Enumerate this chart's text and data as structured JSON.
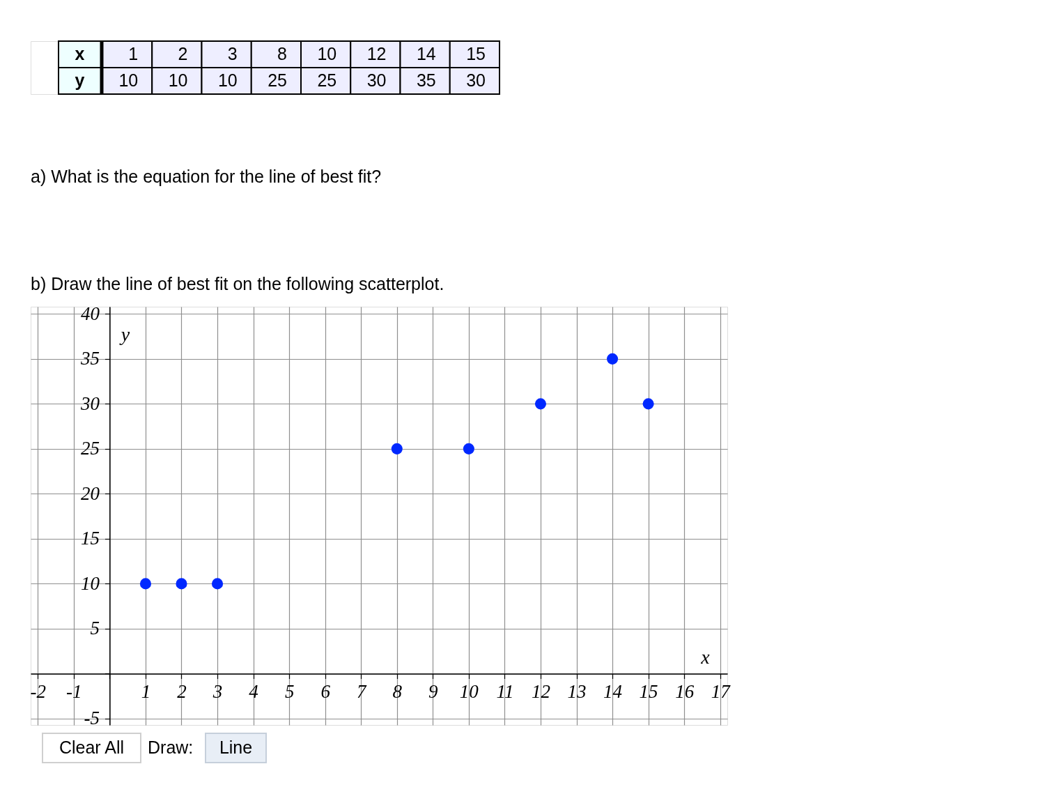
{
  "chart_data": [
    {
      "type": "other",
      "xlabel": "x",
      "ylabel": "y",
      "categories": [
        "1",
        "2",
        "3",
        "8",
        "10",
        "12",
        "14",
        "15"
      ],
      "values": [
        10,
        10,
        10,
        25,
        25,
        30,
        35,
        30
      ],
      "data_labels": true
    },
    {
      "type": "scatter",
      "title": "a) What is the equation for the line of best fit?",
      "subtitle": "b) Draw the line of best fit on the following scatterplot.",
      "xlabel": "x",
      "ylabel": "y",
      "x": [
        1,
        2,
        3,
        8,
        10,
        12,
        14,
        15
      ],
      "values": [
        10,
        10,
        10,
        25,
        25,
        30,
        35,
        30
      ],
      "color": "#0028ff",
      "xlim": [
        -2.2,
        17.2
      ],
      "ylim": [
        -5.7,
        40.8
      ],
      "xticks": [
        -2,
        -1,
        {
          "value": 0,
          "label": null
        },
        1,
        2,
        3,
        4,
        5,
        6,
        7,
        8,
        9,
        10,
        11,
        12,
        13,
        14,
        15,
        16,
        17
      ],
      "yticks": [
        -5,
        {
          "value": 0,
          "label": null
        },
        5,
        10,
        15,
        20,
        25,
        30,
        35,
        40
      ],
      "grid": true,
      "marker": "circle",
      "annotations": [
        "Clear All",
        "Draw:",
        "Line"
      ]
    }
  ]
}
